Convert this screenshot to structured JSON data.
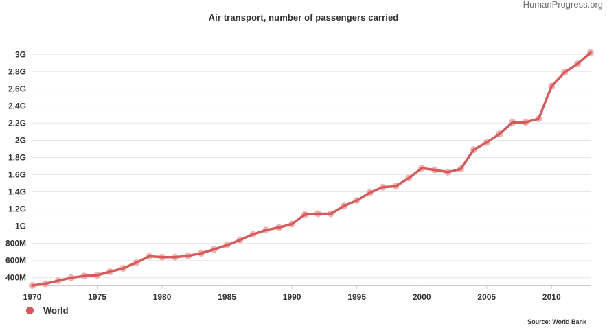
{
  "watermark": "HumanProgress.org",
  "source": "Source: World Bank",
  "colors": {
    "series": "#d45b5b",
    "marker": "#eba4a4",
    "grid": "#e6e6e6"
  },
  "chart_data": {
    "type": "line",
    "title": "Air transport, number of passengers carried",
    "xlabel": "",
    "ylabel": "",
    "grid": true,
    "legend_position": "bottom-left",
    "xlim": [
      1970,
      2013
    ],
    "ylim": [
      310000000,
      3050000000
    ],
    "x_ticks": [
      1970,
      1975,
      1980,
      1985,
      1990,
      1995,
      2000,
      2005,
      2010
    ],
    "x_tick_labels": [
      "1970",
      "1975",
      "1980",
      "1985",
      "1990",
      "1995",
      "2000",
      "2005",
      "2010"
    ],
    "y_ticks": [
      400000000,
      600000000,
      800000000,
      1000000000,
      1200000000,
      1400000000,
      1600000000,
      1800000000,
      2000000000,
      2200000000,
      2400000000,
      2600000000,
      2800000000,
      3000000000
    ],
    "y_tick_labels": [
      "400M",
      "600M",
      "800M",
      "1G",
      "1.2G",
      "1.4G",
      "1.6G",
      "1.8G",
      "2G",
      "2.2G",
      "2.4G",
      "2.6G",
      "2.8G",
      "3G"
    ],
    "series": [
      {
        "name": "World",
        "x": [
          1970,
          1971,
          1972,
          1973,
          1974,
          1975,
          1976,
          1977,
          1978,
          1979,
          1980,
          1981,
          1982,
          1983,
          1984,
          1985,
          1986,
          1987,
          1988,
          1989,
          1990,
          1991,
          1992,
          1993,
          1994,
          1995,
          1996,
          1997,
          1998,
          1999,
          2000,
          2001,
          2002,
          2003,
          2004,
          2005,
          2006,
          2007,
          2008,
          2009,
          2010,
          2011,
          2012,
          2013
        ],
        "values": [
          310000000,
          330000000,
          365000000,
          400000000,
          420000000,
          430000000,
          470000000,
          510000000,
          575000000,
          650000000,
          640000000,
          640000000,
          655000000,
          685000000,
          730000000,
          780000000,
          840000000,
          905000000,
          955000000,
          985000000,
          1025000000,
          1135000000,
          1145000000,
          1145000000,
          1235000000,
          1300000000,
          1390000000,
          1455000000,
          1465000000,
          1560000000,
          1675000000,
          1655000000,
          1630000000,
          1665000000,
          1890000000,
          1975000000,
          2075000000,
          2210000000,
          2210000000,
          2250000000,
          2630000000,
          2790000000,
          2890000000,
          3020000000
        ]
      }
    ]
  }
}
